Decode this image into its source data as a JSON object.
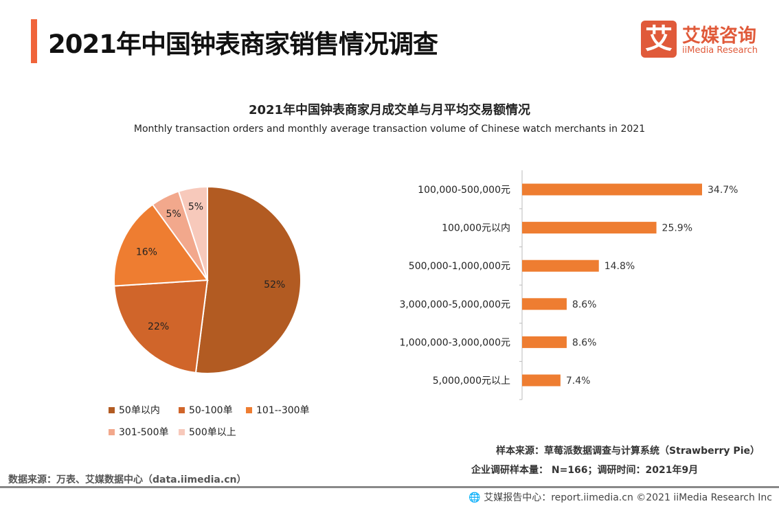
{
  "header": {
    "title": "2021年中国钟表商家销售情况调查",
    "logo_mark": "艾",
    "logo_cn": "艾媒咨询",
    "logo_en": "iiMedia Research"
  },
  "colors": {
    "accent": "#f0643a",
    "bar": "#ee7d31",
    "pie": [
      "#b25b22",
      "#d0652a",
      "#ee7d31",
      "#f2a88c",
      "#f7c9bb"
    ]
  },
  "chart_data": [
    {
      "type": "pie",
      "title": "2021年中国钟表商家月成交单与月平均交易额情况",
      "subtitle": "Monthly transaction orders and monthly average transaction volume of Chinese watch merchants in 2021",
      "categories": [
        "50单以内",
        "50-100单",
        "101--300单",
        "301-500单",
        "500单以上"
      ],
      "values": [
        52,
        22,
        16,
        5,
        5
      ],
      "labels": [
        "52%",
        "22%",
        "16%",
        "5%",
        "5%"
      ],
      "legend": "bottom"
    },
    {
      "type": "bar",
      "orientation": "horizontal",
      "categories": [
        "100,000-500,000元",
        "100,000元以内",
        "500,000-1,000,000元",
        "3,000,000-5,000,000元",
        "1,000,000-3,000,000元",
        "5,000,000元以上"
      ],
      "values": [
        34.7,
        25.9,
        14.8,
        8.6,
        8.6,
        7.4
      ],
      "labels": [
        "34.7%",
        "25.9%",
        "14.8%",
        "8.6%",
        "8.6%",
        "7.4%"
      ]
    }
  ],
  "notes": {
    "sample_source": "样本来源：草莓派数据调查与计算系统（Strawberry Pie）",
    "sample_size": "企业调研样本量： N=166；调研时间：2021年9月",
    "data_source": "数据来源：万表、艾媒数据中心（data.iimedia.cn）"
  },
  "footer": {
    "text": "艾媒报告中心：report.iimedia.cn   ©2021  iiMedia Research  Inc"
  }
}
